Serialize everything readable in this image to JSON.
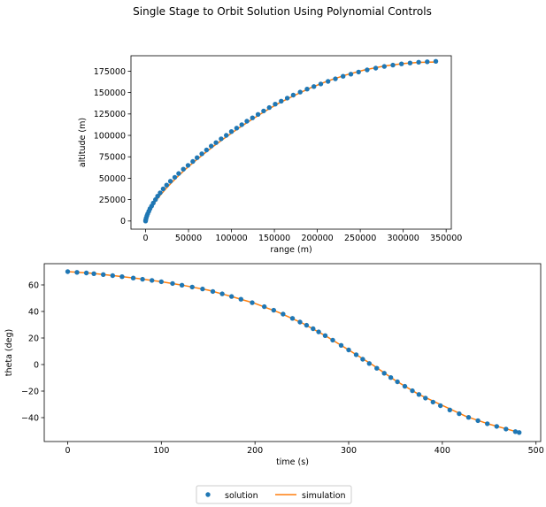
{
  "suptitle": "Single Stage to Orbit Solution Using Polynomial Controls",
  "colors": {
    "solution": "#1f77b4",
    "simulation": "#ff7f0e",
    "axes": "#000000"
  },
  "legend": {
    "placement": "bottom-center",
    "solution_label": "solution",
    "simulation_label": "simulation"
  },
  "chart_data": [
    {
      "type": "line",
      "xlabel": "range (m)",
      "ylabel": "altitude (m)",
      "xlim": [
        -17000,
        356000
      ],
      "ylim": [
        -9500,
        193000
      ],
      "xticks": [
        0,
        50000,
        100000,
        150000,
        200000,
        250000,
        300000,
        350000
      ],
      "yticks": [
        0,
        25000,
        50000,
        75000,
        100000,
        125000,
        150000,
        175000
      ],
      "grid": false,
      "series": [
        {
          "name": "solution",
          "style": "markers",
          "x": [
            0,
            200,
            700,
            1500,
            2500,
            3800,
            5200,
            7000,
            9000,
            11500,
            14000,
            17000,
            20500,
            24500,
            29000,
            34000,
            38500,
            44000,
            49500,
            55000,
            60000,
            65500,
            71000,
            76500,
            82000,
            88000,
            94000,
            100000,
            106000,
            112000,
            118000,
            124500,
            131000,
            137500,
            144000,
            151000,
            158000,
            165000,
            172000,
            180000,
            188000,
            196000,
            204000,
            212500,
            221000,
            230000,
            239000,
            248000,
            258000,
            268000,
            278000,
            288000,
            298000,
            308000,
            318000,
            328000,
            338000
          ],
          "y": [
            0,
            1500,
            3500,
            6000,
            8500,
            11500,
            14500,
            17500,
            21000,
            25000,
            29000,
            33000,
            37500,
            42000,
            46500,
            51000,
            55500,
            60500,
            65000,
            69500,
            74000,
            78500,
            83000,
            87500,
            91500,
            96000,
            100000,
            104500,
            108500,
            112500,
            116500,
            120500,
            124500,
            128500,
            132500,
            136500,
            140000,
            143500,
            147000,
            150500,
            154000,
            157000,
            160000,
            163000,
            166000,
            169000,
            171500,
            174000,
            176500,
            178500,
            180500,
            182000,
            183500,
            184500,
            185500,
            186000,
            186500
          ]
        },
        {
          "name": "simulation",
          "style": "line",
          "x": [
            0,
            1000,
            2500,
            5000,
            8000,
            12000,
            17000,
            23000,
            30000,
            38000,
            47000,
            57000,
            68000,
            80000,
            93000,
            107000,
            122000,
            138000,
            155000,
            173000,
            192000,
            212000,
            233000,
            255000,
            278000,
            301000,
            318000,
            330000,
            336000
          ],
          "y": [
            0,
            3500,
            7500,
            12500,
            17500,
            23500,
            30000,
            37000,
            44500,
            52500,
            61000,
            69500,
            78500,
            88000,
            97500,
            107500,
            117500,
            127500,
            137500,
            146500,
            155500,
            163500,
            170500,
            176500,
            181000,
            184000,
            185200,
            185600,
            185700
          ]
        }
      ]
    },
    {
      "type": "line",
      "xlabel": "time (s)",
      "ylabel": "theta (deg)",
      "xlim": [
        -25,
        505
      ],
      "ylim": [
        -58,
        76
      ],
      "xticks": [
        0,
        100,
        200,
        300,
        400,
        500
      ],
      "yticks": [
        -40,
        -20,
        0,
        20,
        40,
        60
      ],
      "grid": false,
      "series": [
        {
          "name": "solution",
          "style": "markers",
          "t": [
            0,
            10,
            20,
            28,
            38,
            48,
            58,
            70,
            80,
            90,
            100,
            112,
            122,
            133,
            144,
            155,
            165,
            175,
            185,
            197,
            210,
            220,
            230,
            240,
            248,
            255,
            262,
            268,
            275,
            283,
            292,
            300,
            308,
            315,
            322,
            330,
            338,
            345,
            352,
            360,
            368,
            375,
            382,
            390,
            398,
            408,
            418,
            428,
            438,
            448,
            458,
            468,
            478,
            482
          ],
          "theta": [
            70,
            69.5,
            69,
            68.5,
            67.8,
            67,
            66.2,
            65.2,
            64.3,
            63.4,
            62.4,
            61.1,
            59.8,
            58.4,
            56.9,
            55.1,
            53.3,
            51.3,
            49.2,
            46.6,
            43.6,
            40.9,
            38,
            34.8,
            32,
            29.6,
            27,
            24.6,
            21.8,
            18.4,
            14.5,
            11,
            7.4,
            4,
            0.8,
            -2.8,
            -6.5,
            -9.8,
            -13,
            -16.4,
            -19.7,
            -22.5,
            -25.3,
            -28.3,
            -31,
            -34.2,
            -37.1,
            -39.8,
            -42.3,
            -44.6,
            -46.6,
            -48.6,
            -50.5,
            -51.2
          ]
        },
        {
          "name": "simulation",
          "style": "line",
          "t": [
            0,
            25,
            50,
            75,
            100,
            125,
            150,
            175,
            200,
            225,
            250,
            275,
            300,
            325,
            350,
            375,
            400,
            425,
            450,
            475,
            482
          ],
          "theta": [
            70,
            68.8,
            66.9,
            64.8,
            62.4,
            59.5,
            56.1,
            51.3,
            46.1,
            39.4,
            31.4,
            21.8,
            11,
            0,
            -12.1,
            -22.5,
            -30.8,
            -38.9,
            -44.9,
            -49.8,
            -51.2
          ]
        }
      ]
    }
  ]
}
